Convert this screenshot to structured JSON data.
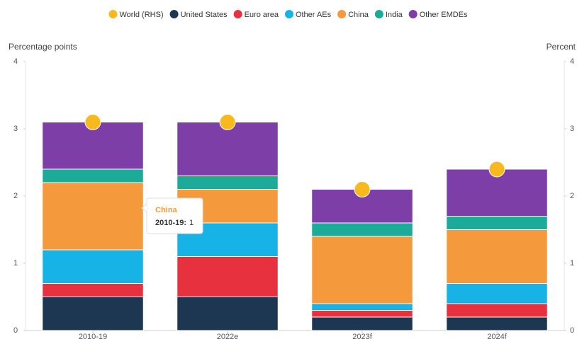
{
  "chart_data": {
    "type": "stacked_bar",
    "y_label": "Percentage points",
    "y2_label": "Percent",
    "categories": [
      "2010-19",
      "2022e",
      "2023f",
      "2024f"
    ],
    "series": [
      {
        "name": "World (RHS)",
        "color": "#f7b91e",
        "axis": "y2",
        "type": "scatter",
        "values": [
          3.1,
          3.1,
          2.1,
          2.4
        ]
      },
      {
        "name": "United States",
        "color": "#1d3752",
        "values": [
          0.5,
          0.5,
          0.2,
          0.2
        ]
      },
      {
        "name": "Euro area",
        "color": "#e8313f",
        "values": [
          0.2,
          0.6,
          0.1,
          0.2
        ]
      },
      {
        "name": "Other AEs",
        "color": "#17b2e6",
        "values": [
          0.5,
          0.5,
          0.1,
          0.3
        ]
      },
      {
        "name": "China",
        "color": "#f59a3c",
        "values": [
          1.0,
          0.5,
          1.0,
          0.8
        ]
      },
      {
        "name": "India",
        "color": "#1bab98",
        "values": [
          0.2,
          0.2,
          0.2,
          0.2
        ]
      },
      {
        "name": "Other EMDEs",
        "color": "#7d3fa7",
        "values": [
          0.7,
          0.8,
          0.5,
          0.7
        ]
      }
    ],
    "ylim": [
      0,
      4
    ],
    "yticks": [
      0,
      1,
      2,
      3,
      4
    ],
    "y2lim": [
      0,
      4
    ],
    "y2ticks": [
      0,
      1,
      2,
      3,
      4
    ],
    "tooltip": {
      "title": "China",
      "category": "2010-19:",
      "value": 1
    }
  }
}
